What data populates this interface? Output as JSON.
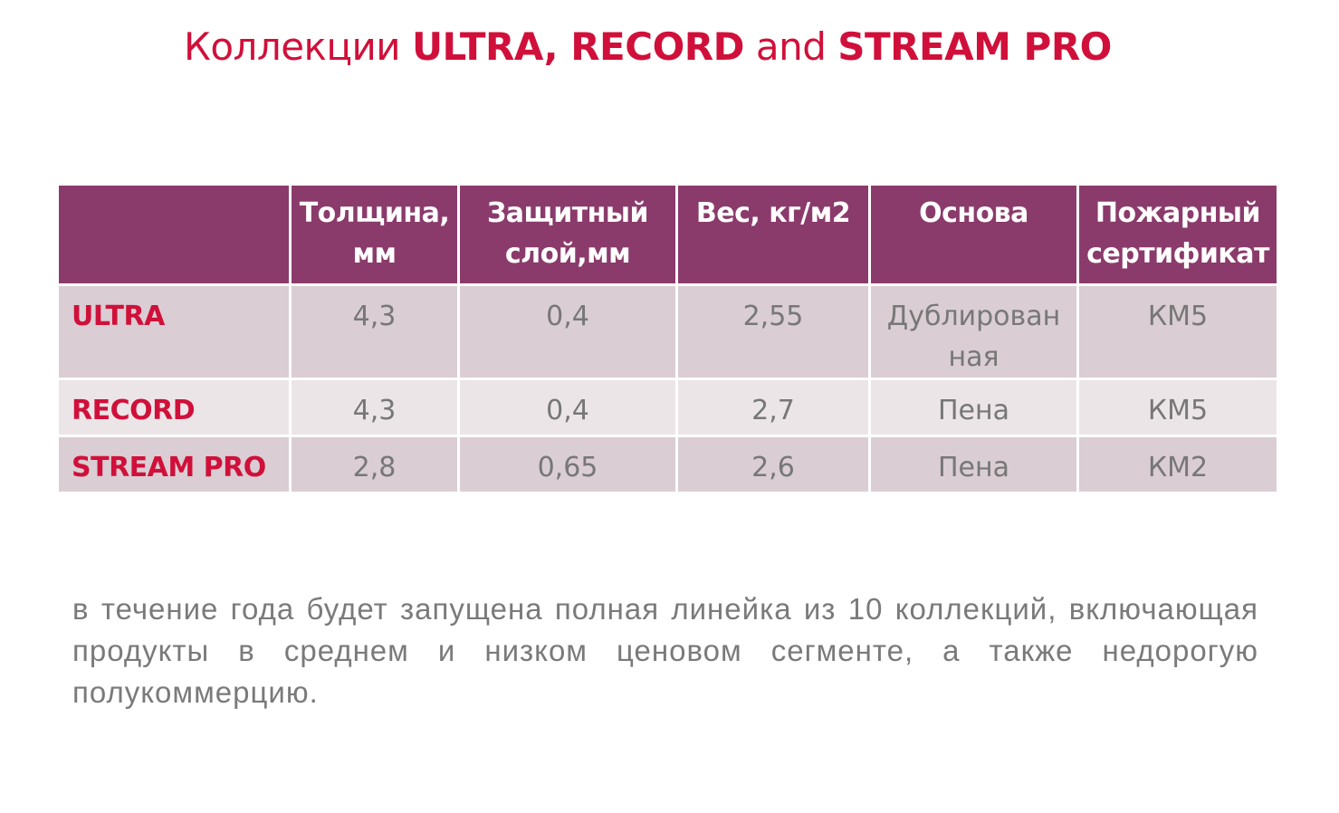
{
  "title": {
    "p1": "Коллекции ",
    "p2": "ULTRA, RECORD",
    "p3": " and ",
    "p4": "STREAM PRO"
  },
  "table": {
    "headers": [
      "",
      "Толщина, мм",
      "Защитный слой,мм",
      "Вес, кг/м2",
      "Основа",
      "Пожарный сертификат"
    ],
    "rows": [
      [
        "ULTRA",
        "4,3",
        "0,4",
        "2,55",
        "Дублированная",
        "КМ5"
      ],
      [
        "RECORD",
        "4,3",
        "0,4",
        "2,7",
        "Пена",
        "КМ5"
      ],
      [
        "STREAM PRO",
        "2,8",
        "0,65",
        "2,6",
        "Пена",
        "КМ2"
      ]
    ]
  },
  "note": "в течение года будет запущена полная  линейка из 10 коллекций, включающая продукты в среднем и низком ценовом сегменте, а также недорогую полукоммерцию.",
  "colors": {
    "accent": "#d0103a",
    "header_bg": "#8b3b6b",
    "row_dark": "#dacdd3",
    "row_light": "#ece5e8",
    "text_gray": "#777777"
  }
}
